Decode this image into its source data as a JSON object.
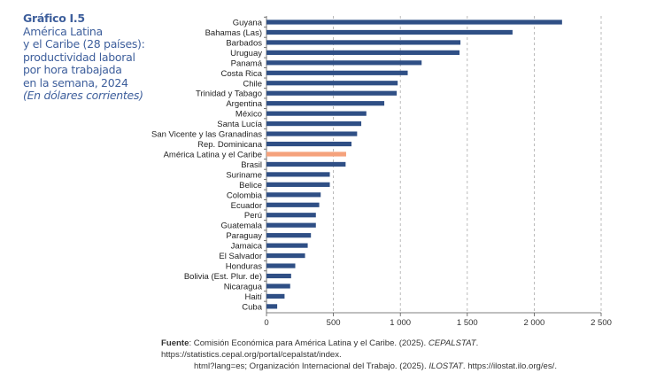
{
  "title": {
    "number": "Gráfico I.5",
    "lines": [
      "América Latina",
      "y el Caribe (28 países):",
      "productividad laboral",
      "por hora trabajada",
      "en la semana, 2024"
    ],
    "units": "(En dólares corrientes)"
  },
  "chart_data": {
    "type": "bar",
    "orientation": "horizontal",
    "title": "América Latina y el Caribe (28 países): productividad laboral por hora trabajada en la semana, 2024",
    "xlabel": "",
    "ylabel": "",
    "xlim": [
      0,
      2500
    ],
    "xticks": [
      0,
      500,
      1000,
      1500,
      2000,
      2500
    ],
    "xtick_labels": [
      "0",
      "500",
      "1 000",
      "1 500",
      "2 000",
      "2 500"
    ],
    "grid": "vertical dashed",
    "categories": [
      "Guyana",
      "Bahamas (Las)",
      "Barbados",
      "Uruguay",
      "Panamá",
      "Costa Rica",
      "Chile",
      "Trinidad y Tabago",
      "Argentina",
      "México",
      "Santa Lucía",
      "San Vicente y las Granadinas",
      "Rep. Dominicana",
      "América Latina y el Caribe",
      "Brasil",
      "Suriname",
      "Belice",
      "Colombia",
      "Ecuador",
      "Perú",
      "Guatemala",
      "Paraguay",
      "Jamaica",
      "El Salvador",
      "Honduras",
      "Bolivia (Est. Plur. de)",
      "Nicaragua",
      "Haití",
      "Cuba"
    ],
    "values": [
      2208,
      1838,
      1449,
      1442,
      1159,
      1055,
      980,
      973,
      880,
      746,
      708,
      677,
      635,
      595,
      591,
      473,
      473,
      405,
      394,
      369,
      369,
      332,
      308,
      288,
      215,
      184,
      177,
      135,
      80
    ],
    "highlight": "América Latina y el Caribe",
    "colors": {
      "bar": "#2f4f85",
      "highlight": "#f5a27c",
      "grid": "#aaaaaa"
    }
  },
  "source": {
    "label": "Fuente",
    "text1": ": Comisión Económica para América Latina y el Caribe. (2025). ",
    "cepalstat": "CEPALSTAT",
    "text2": ". https://statistics.cepal.org/portal/cepalstat/index.",
    "text3": "html?lang=es; Organización Internacional del Trabajo. (2025). ",
    "ilostat": "ILOSTAT",
    "text4": ". https://ilostat.ilo.org/es/."
  }
}
